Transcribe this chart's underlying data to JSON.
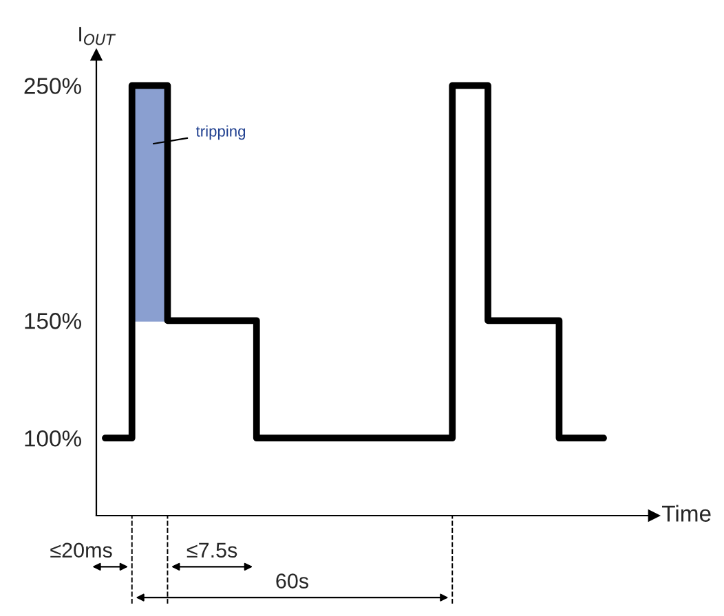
{
  "chart_data": {
    "type": "step",
    "ylabel": "I$_{OUT}$",
    "xlabel": "Time",
    "categories": [
      null,
      null,
      null,
      null,
      null,
      null,
      null,
      null,
      null,
      null,
      null,
      null,
      null,
      null,
      null,
      null,
      null,
      null,
      null,
      null,
      null,
      null,
      null,
      null,
      null,
      null,
      null,
      null,
      null
    ],
    "series": [
      {
        "color": "#000000",
        "values": [
          100,
          100,
          250,
          250,
          150,
          150,
          150,
          150,
          150,
          100,
          100,
          100,
          100,
          100,
          100,
          100,
          100,
          100,
          100,
          100,
          250,
          250,
          150,
          150,
          150,
          150,
          100,
          100,
          100
        ]
      }
    ],
    "ylim": [
      67,
      263
    ],
    "yticks": [
      {
        "value": 100,
        "label": "100%"
      },
      {
        "value": 150,
        "label": "150%"
      },
      {
        "value": 250,
        "label": "250%"
      }
    ],
    "tick_labels": "y",
    "grid": false,
    "legend": false,
    "marker": "none",
    "line_style": "solid",
    "annotations": [
      "tripping",
      "≤20ms",
      "≤7.5s",
      "60s"
    ]
  }
}
